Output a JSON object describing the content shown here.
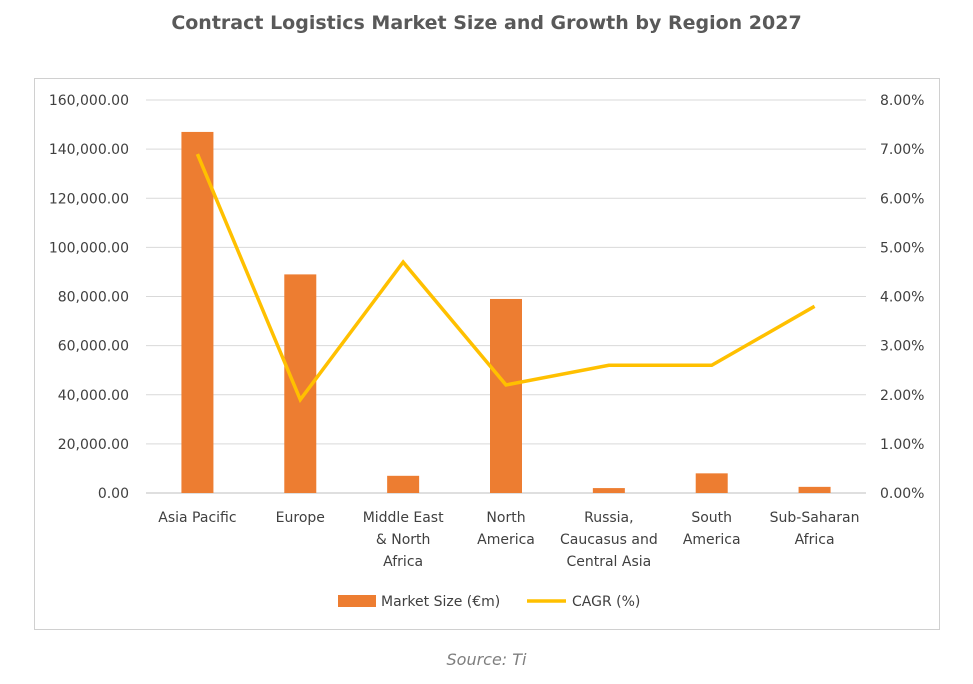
{
  "title": "Contract Logistics Market Size and Growth by Region 2027",
  "source": "Source: Ti",
  "chart_data": {
    "type": "bar",
    "title": "Contract Logistics Market Size and Growth by Region 2027",
    "categories": [
      [
        "Asia Pacific"
      ],
      [
        "Europe"
      ],
      [
        "Middle East",
        "& North",
        "Africa"
      ],
      [
        "North",
        "America"
      ],
      [
        "Russia,",
        "Caucasus and",
        "Central Asia"
      ],
      [
        "South",
        "America"
      ],
      [
        "Sub-Saharan",
        "Africa"
      ]
    ],
    "series": [
      {
        "name": "Market Size (€m)",
        "type": "bar",
        "axis": "left",
        "color": "#ED7D31",
        "values": [
          147000,
          89000,
          7000,
          79000,
          2000,
          8000,
          2500
        ]
      },
      {
        "name": "CAGR (%)",
        "type": "line",
        "axis": "right",
        "color": "#FFC000",
        "values": [
          6.9,
          1.9,
          4.7,
          2.2,
          2.6,
          2.6,
          3.8
        ]
      }
    ],
    "y_left": {
      "min": 0,
      "max": 160000,
      "ticks": [
        "0.00",
        "20,000.00",
        "40,000.00",
        "60,000.00",
        "80,000.00",
        "100,000.00",
        "120,000.00",
        "140,000.00",
        "160,000.00"
      ]
    },
    "y_right": {
      "min": 0,
      "max": 8,
      "ticks": [
        "0.00%",
        "1.00%",
        "2.00%",
        "3.00%",
        "4.00%",
        "5.00%",
        "6.00%",
        "7.00%",
        "8.00%"
      ]
    },
    "grid": true,
    "legend": "bottom"
  }
}
